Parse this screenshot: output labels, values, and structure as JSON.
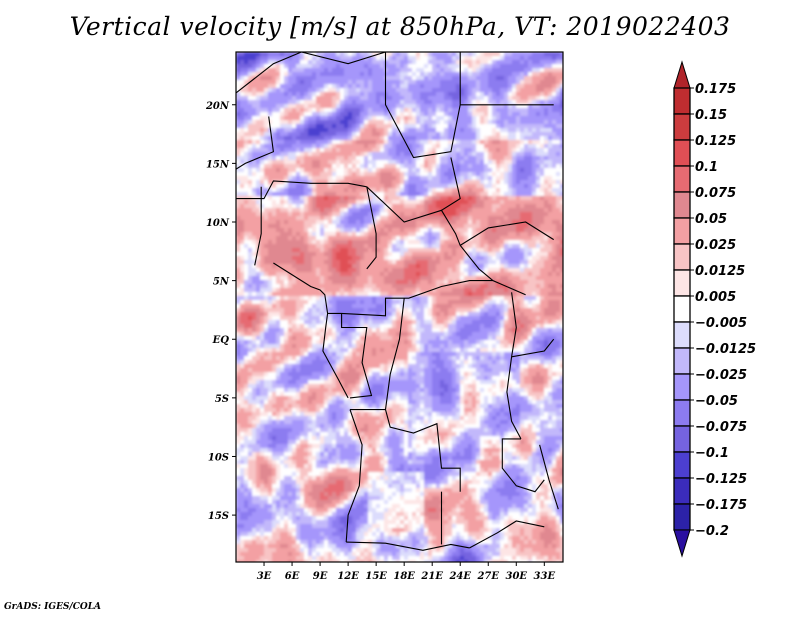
{
  "title": "Vertical velocity [m/s] at 850hPa, VT: 2019022403",
  "footer": "GrADS: IGES/COLA",
  "chart_data": {
    "type": "heatmap",
    "title": "Vertical velocity [m/s] at 850hPa, VT: 2019022403",
    "variable": "Vertical velocity",
    "units": "m/s",
    "level": "850hPa",
    "valid_time": "2019022403",
    "xlabel": "",
    "ylabel": "",
    "x_range_deg": [
      0,
      35
    ],
    "y_range_deg": [
      -19,
      24.5
    ],
    "x_ticks": [
      {
        "value": 3,
        "label": "3E"
      },
      {
        "value": 6,
        "label": "6E"
      },
      {
        "value": 9,
        "label": "9E"
      },
      {
        "value": 12,
        "label": "12E"
      },
      {
        "value": 15,
        "label": "15E"
      },
      {
        "value": 18,
        "label": "18E"
      },
      {
        "value": 21,
        "label": "21E"
      },
      {
        "value": 24,
        "label": "24E"
      },
      {
        "value": 27,
        "label": "27E"
      },
      {
        "value": 30,
        "label": "30E"
      },
      {
        "value": 33,
        "label": "33E"
      }
    ],
    "y_ticks": [
      {
        "value": 20,
        "label": "20N"
      },
      {
        "value": 15,
        "label": "15N"
      },
      {
        "value": 10,
        "label": "10N"
      },
      {
        "value": 5,
        "label": "5N"
      },
      {
        "value": 0,
        "label": "EQ"
      },
      {
        "value": -5,
        "label": "5S"
      },
      {
        "value": -10,
        "label": "10S"
      },
      {
        "value": -15,
        "label": "15S"
      }
    ],
    "grid": false,
    "colorbar": {
      "placement": "right",
      "extend": "both",
      "levels": [
        "0.175",
        "0.15",
        "0.125",
        "0.1",
        "0.075",
        "0.05",
        "0.025",
        "0.0125",
        "0.005",
        "-0.005",
        "-0.0125",
        "-0.025",
        "-0.05",
        "-0.075",
        "-0.1",
        "-0.125",
        "-0.175",
        "-0.2"
      ],
      "colors": [
        "#b0242a",
        "#bf2d30",
        "#cc3c3e",
        "#e04f55",
        "#e66b72",
        "#e08890",
        "#f3a0a3",
        "#f8c4c5",
        "#fde5e5",
        "#ffffff",
        "#dcdcfc",
        "#c2b8fb",
        "#a596fb",
        "#8c7bf0",
        "#7563e0",
        "#4c3fd0",
        "#3b2cbc",
        "#2c22a8",
        "#2a0fa0"
      ],
      "top_extend_color": "#b0242a",
      "bottom_extend_color": "#2a0fa0"
    },
    "features": {
      "positive_bands": "Elongated red ascent bands across 5N–12N (Nigeria, Cameroon, Chad, Central African Republic, South Sudan)",
      "negative_regions": "Blue descent patches over Sahara (north), central Congo basin and east Africa",
      "near_zero_region": "Near-zero (white) area over central Angola around 12S–15S, 15E–19E"
    }
  }
}
